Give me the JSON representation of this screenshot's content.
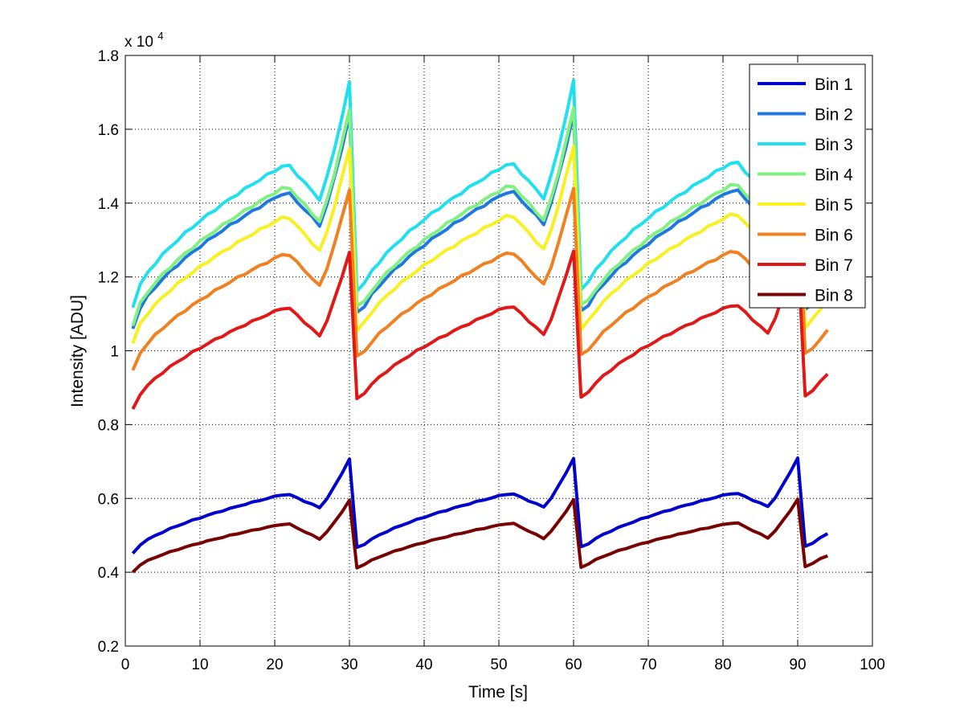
{
  "chart_data": {
    "type": "line",
    "title": "",
    "xlabel": "Time [s]",
    "ylabel": "Intensity [ADU]",
    "y_exponent_label": "x 10",
    "y_exponent_power": "4",
    "xlim": [
      0,
      100
    ],
    "ylim": [
      2000,
      18000
    ],
    "xticks": [
      0,
      10,
      20,
      30,
      40,
      50,
      60,
      70,
      80,
      90,
      100
    ],
    "xtick_labels": [
      "0",
      "10",
      "20",
      "30",
      "40",
      "50",
      "60",
      "70",
      "80",
      "90",
      "100"
    ],
    "yticks": [
      2000,
      4000,
      6000,
      8000,
      10000,
      12000,
      14000,
      16000,
      18000
    ],
    "ytick_labels": [
      "0.2",
      "0.4",
      "0.6",
      "0.8",
      "1",
      "1.2",
      "1.4",
      "1.6",
      "1.8"
    ],
    "grid": true,
    "legend_position": "top-right",
    "x_range": [
      1,
      94
    ],
    "period": 30,
    "series": [
      {
        "name": "Bin 1",
        "color": "#0000cc",
        "base": 4500,
        "plateau": 6100,
        "dip": 5750,
        "peak": 7250,
        "trough": 4650,
        "drift": 15
      },
      {
        "name": "Bin 2",
        "color": "#1e78e0",
        "base": 10600,
        "plateau": 14250,
        "dip": 13400,
        "peak": 16800,
        "trough": 11000,
        "drift": 40
      },
      {
        "name": "Bin 3",
        "color": "#20e0ee",
        "base": 11200,
        "plateau": 15000,
        "dip": 14100,
        "peak": 17700,
        "trough": 11600,
        "drift": 40
      },
      {
        "name": "Bin 4",
        "color": "#80f080",
        "base": 10700,
        "plateau": 14400,
        "dip": 13500,
        "peak": 16950,
        "trough": 11200,
        "drift": 40
      },
      {
        "name": "Bin 5",
        "color": "#f8f020",
        "base": 10200,
        "plateau": 13600,
        "dip": 12700,
        "peak": 15900,
        "trough": 10500,
        "drift": 40
      },
      {
        "name": "Bin 6",
        "color": "#f08020",
        "base": 9450,
        "plateau": 12600,
        "dip": 11750,
        "peak": 14750,
        "trough": 9800,
        "drift": 40
      },
      {
        "name": "Bin 7",
        "color": "#e01818",
        "base": 8400,
        "plateau": 11150,
        "dip": 10400,
        "peak": 13000,
        "trough": 8650,
        "drift": 35
      },
      {
        "name": "Bin 8",
        "color": "#780000",
        "base": 4000,
        "plateau": 5300,
        "dip": 4900,
        "peak": 6100,
        "trough": 4100,
        "drift": 15
      }
    ]
  }
}
